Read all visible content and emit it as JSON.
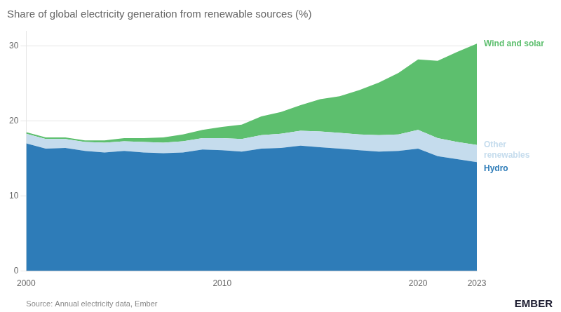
{
  "chart_data": {
    "type": "area",
    "title": "Share of global electricity generation from renewable sources (%)",
    "x": [
      2000,
      2001,
      2002,
      2003,
      2004,
      2005,
      2006,
      2007,
      2008,
      2009,
      2010,
      2011,
      2012,
      2013,
      2014,
      2015,
      2016,
      2017,
      2018,
      2019,
      2020,
      2021,
      2022,
      2023
    ],
    "series": [
      {
        "name": "Hydro",
        "color": "#2e7cb8",
        "values": [
          17.0,
          16.3,
          16.4,
          16.0,
          15.8,
          16.0,
          15.8,
          15.7,
          15.8,
          16.2,
          16.1,
          15.9,
          16.3,
          16.4,
          16.7,
          16.5,
          16.3,
          16.1,
          15.9,
          16.0,
          16.3,
          15.3,
          14.9,
          14.5
        ]
      },
      {
        "name": "Other\nrenewables",
        "color": "#c5dced",
        "values": [
          1.3,
          1.3,
          1.2,
          1.2,
          1.3,
          1.3,
          1.4,
          1.4,
          1.5,
          1.5,
          1.6,
          1.7,
          1.8,
          1.9,
          2.0,
          2.1,
          2.1,
          2.1,
          2.2,
          2.2,
          2.5,
          2.4,
          2.3,
          2.3
        ]
      },
      {
        "name": "Wind and solar",
        "color": "#5dbf6e",
        "values": [
          0.2,
          0.2,
          0.2,
          0.2,
          0.3,
          0.4,
          0.5,
          0.7,
          0.9,
          1.1,
          1.5,
          1.9,
          2.5,
          2.9,
          3.4,
          4.3,
          4.9,
          5.9,
          7.0,
          8.2,
          9.4,
          10.3,
          12.0,
          13.5
        ]
      }
    ],
    "stacked": true,
    "xlim": [
      2000,
      2023
    ],
    "xticks": [
      2000,
      2010,
      2020,
      2023
    ],
    "ylim": [
      0,
      32
    ],
    "yticks": [
      0,
      10,
      20,
      30
    ],
    "grid": "y",
    "annotations": [
      "Source: Annual electricity data, Ember",
      "EMBER"
    ]
  }
}
